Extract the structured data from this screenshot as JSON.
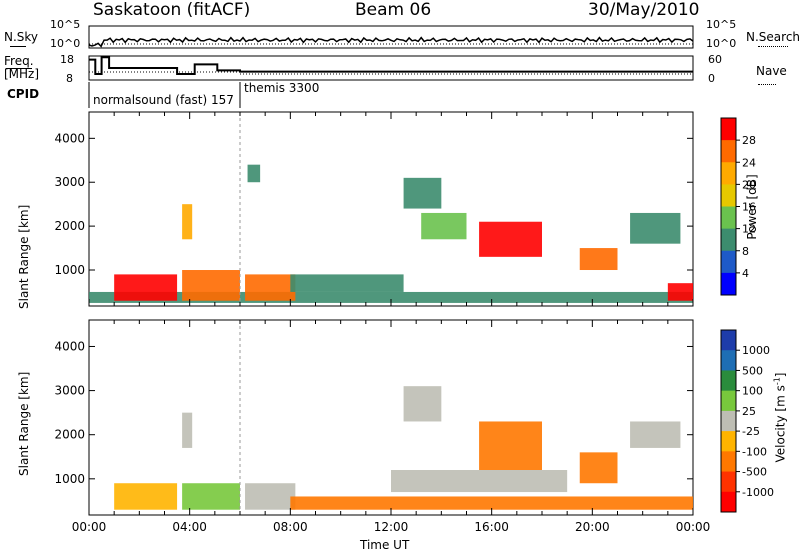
{
  "header": {
    "station": "Saskatoon (fitACF)",
    "beam": "Beam 06",
    "date": "30/May/2010"
  },
  "chart_data": [
    {
      "type": "line",
      "panel": "noise",
      "left_label": "N.Sky",
      "right_label": "N.Search",
      "yticks_left": [
        "10^5",
        "10^0"
      ],
      "yticks_right": [
        "10^5",
        "10^0"
      ],
      "y_scale": "log"
    },
    {
      "type": "line",
      "panel": "frequency",
      "left_label_1": "Freq.",
      "left_label_2": "[MHz]",
      "right_label": "Nave",
      "cpid_label": "CPID",
      "yticks_left": [
        "18",
        "8"
      ],
      "yticks_right": [
        "60",
        "0"
      ],
      "ylim_left": [
        8,
        18
      ],
      "ylim_right": [
        0,
        60
      ],
      "freq_steps": [
        {
          "t": 0.0,
          "f": 16.5
        },
        {
          "t": 0.25,
          "f": 10.5
        },
        {
          "t": 0.5,
          "f": 17.5
        },
        {
          "t": 0.8,
          "f": 13.0
        },
        {
          "t": 3.5,
          "f": 10.5
        },
        {
          "t": 4.2,
          "f": 14.5
        },
        {
          "t": 5.1,
          "f": 12.0
        },
        {
          "t": 6.0,
          "f": 11.5
        },
        {
          "t": 24.0,
          "f": 11.5
        }
      ],
      "cpid_entries": [
        {
          "t": 0.0,
          "label": "normalsound (fast) 157"
        },
        {
          "t": 6.0,
          "label": "themis 3300"
        }
      ]
    },
    {
      "type": "heatmap",
      "panel": "power",
      "ylabel": "Slant Range [km]",
      "yticks": [
        1000,
        2000,
        3000,
        4000
      ],
      "ylim": [
        180,
        4600
      ],
      "xlim": [
        0,
        24
      ],
      "colorbar_label": "Power [dB]",
      "colorbar_ticks": [
        "28",
        "24",
        "20",
        "16",
        "12",
        "8",
        "4"
      ],
      "colorbar_colors": [
        "#ff0000",
        "#ff6a00",
        "#ffaa00",
        "#e6c800",
        "#6ac24e",
        "#3c8c6e",
        "#1e5ac8",
        "#0000ff"
      ],
      "patches": [
        {
          "t0": 0.0,
          "t1": 24.0,
          "r0": 250,
          "r1": 500,
          "db": 6
        },
        {
          "t0": 1.0,
          "t1": 3.5,
          "r0": 300,
          "r1": 900,
          "db": 28
        },
        {
          "t0": 3.7,
          "t1": 6.0,
          "r0": 300,
          "r1": 1000,
          "db": 24
        },
        {
          "t0": 6.2,
          "t1": 8.2,
          "r0": 300,
          "r1": 900,
          "db": 22
        },
        {
          "t0": 3.7,
          "t1": 4.1,
          "r0": 1700,
          "r1": 2500,
          "db": 18
        },
        {
          "t0": 6.3,
          "t1": 6.8,
          "r0": 3000,
          "r1": 3400,
          "db": 6
        },
        {
          "t0": 8.0,
          "t1": 12.5,
          "r0": 500,
          "r1": 900,
          "db": 6
        },
        {
          "t0": 12.5,
          "t1": 14.0,
          "r0": 2400,
          "r1": 3100,
          "db": 8
        },
        {
          "t0": 13.2,
          "t1": 15.0,
          "r0": 1700,
          "r1": 2300,
          "db": 10
        },
        {
          "t0": 15.5,
          "t1": 18.0,
          "r0": 1300,
          "r1": 2100,
          "db": 26
        },
        {
          "t0": 19.5,
          "t1": 21.0,
          "r0": 1000,
          "r1": 1500,
          "db": 24
        },
        {
          "t0": 21.5,
          "t1": 23.5,
          "r0": 1600,
          "r1": 2300,
          "db": 8
        },
        {
          "t0": 23.0,
          "t1": 24.0,
          "r0": 300,
          "r1": 700,
          "db": 28
        }
      ]
    },
    {
      "type": "heatmap",
      "panel": "velocity",
      "ylabel": "Slant Range [km]",
      "xlabel": "Time UT",
      "yticks": [
        1000,
        2000,
        3000,
        4000
      ],
      "ylim": [
        180,
        4600
      ],
      "xlim": [
        0,
        24
      ],
      "xticks": [
        "00:00",
        "04:00",
        "08:00",
        "12:00",
        "16:00",
        "20:00",
        "00:00"
      ],
      "colorbar_label": "Velocity [m s",
      "colorbar_label_exp": "-1",
      "colorbar_label_close": "]",
      "colorbar_ticks": [
        "1000",
        "500",
        "100",
        "25",
        "-25",
        "-100",
        "-500",
        "-1000"
      ],
      "colorbar_colors": [
        "#1e3caa",
        "#1e6eb4",
        "#2a8c3c",
        "#78c83c",
        "#bebeb4",
        "#ffb400",
        "#ff7800",
        "#ff3200",
        "#ff0000"
      ],
      "patches": [
        {
          "t0": 1.0,
          "t1": 3.5,
          "r0": 300,
          "r1": 900,
          "v": -100
        },
        {
          "t0": 3.7,
          "t1": 6.0,
          "r0": 300,
          "r1": 900,
          "v": 80
        },
        {
          "t0": 6.2,
          "t1": 8.2,
          "r0": 300,
          "r1": 900,
          "v": 0
        },
        {
          "t0": 8.0,
          "t1": 24.0,
          "r0": 300,
          "r1": 600,
          "v": -150
        },
        {
          "t0": 3.7,
          "t1": 4.1,
          "r0": 1700,
          "r1": 2500,
          "v": 0
        },
        {
          "t0": 12.5,
          "t1": 14.0,
          "r0": 2300,
          "r1": 3100,
          "v": 0
        },
        {
          "t0": 15.5,
          "t1": 18.0,
          "r0": 1200,
          "r1": 2300,
          "v": -500
        },
        {
          "t0": 19.5,
          "t1": 21.0,
          "r0": 900,
          "r1": 1600,
          "v": -500
        },
        {
          "t0": 21.5,
          "t1": 23.5,
          "r0": 1700,
          "r1": 2300,
          "v": 0
        },
        {
          "t0": 12.0,
          "t1": 19.0,
          "r0": 700,
          "r1": 1200,
          "v": 0
        }
      ]
    }
  ]
}
